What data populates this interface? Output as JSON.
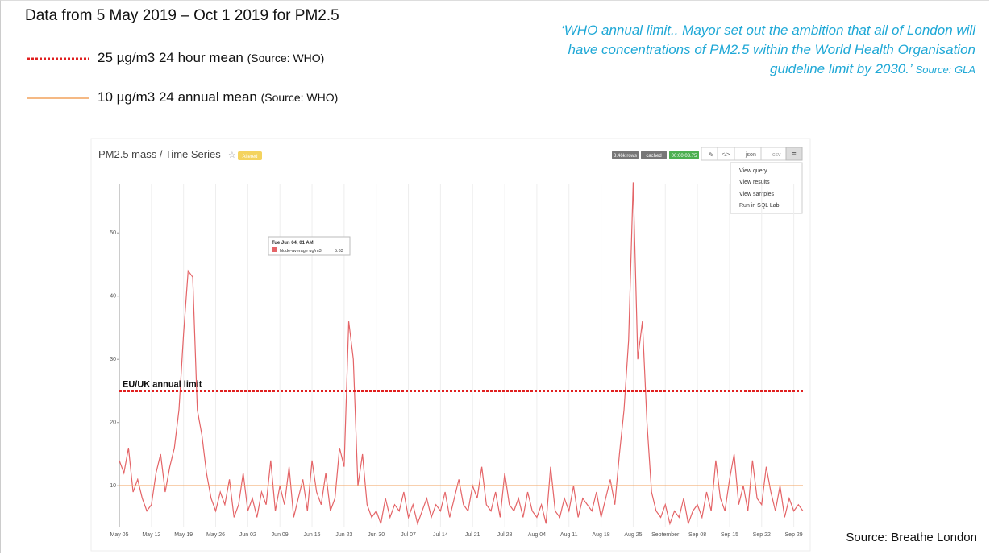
{
  "slide": {
    "title": "Data from 5 May 2019 – Oct 1 2019 for PM2.5",
    "legend": [
      {
        "label": "25 µg/m3 24 hour mean",
        "source": "(Source: WHO)"
      },
      {
        "label": "10 µg/m3 24 annual mean",
        "source": "(Source: WHO)"
      }
    ],
    "quote": {
      "lines": [
        "‘WHO annual limit.. Mayor set out the ambition that all of London will",
        "have concentrations of PM2.5 within the World Health Organisation",
        "guideline limit by 2030.’"
      ],
      "source": "Source: GLA"
    },
    "source": "Source: Breathe London"
  },
  "toolbar": {
    "title": "PM2.5 mass / Time Series",
    "badge": "Altered",
    "rows": "3.46k rows",
    "cached": "cached",
    "time": "00:00:03.75",
    "buttons": [
      "json",
      "csv"
    ],
    "menu": [
      "View query",
      "View results",
      "View samples",
      "Run in SQL Lab"
    ]
  },
  "tooltip": {
    "title": "Tue Jun 04, 01 AM",
    "series": "Node-average ug/m3",
    "value": 5.63
  },
  "chart_data": {
    "type": "line",
    "categories": [
      "May 05",
      null,
      null,
      null,
      null,
      null,
      null,
      "May 12",
      null,
      null,
      null,
      null,
      null,
      null,
      "May 19",
      null,
      null,
      null,
      null,
      null,
      null,
      "May 26",
      null,
      null,
      null,
      null,
      null,
      null,
      "Jun 02",
      null,
      null,
      null,
      null,
      null,
      null,
      "Jun 09",
      null,
      null,
      null,
      null,
      null,
      null,
      "Jun 16",
      null,
      null,
      null,
      null,
      null,
      null,
      "Jun 23",
      null,
      null,
      null,
      null,
      null,
      null,
      "Jun 30",
      null,
      null,
      null,
      null,
      null,
      null,
      "Jul 07",
      null,
      null,
      null,
      null,
      null,
      null,
      "Jul 14",
      null,
      null,
      null,
      null,
      null,
      null,
      "Jul 21",
      null,
      null,
      null,
      null,
      null,
      null,
      "Jul 28",
      null,
      null,
      null,
      null,
      null,
      null,
      "Aug 04",
      null,
      null,
      null,
      null,
      null,
      null,
      "Aug 11",
      null,
      null,
      null,
      null,
      null,
      null,
      "Aug 18",
      null,
      null,
      null,
      null,
      null,
      null,
      "Aug 25",
      null,
      null,
      null,
      null,
      null,
      null,
      "September",
      null,
      null,
      null,
      null,
      null,
      null,
      "Sep 08",
      null,
      null,
      null,
      null,
      null,
      null,
      "Sep 15",
      null,
      null,
      null,
      null,
      null,
      null,
      "Sep 22",
      null,
      null,
      null,
      null,
      null,
      null,
      "Sep 29",
      null,
      null
    ],
    "series": [
      {
        "name": "Node-average ug/m3",
        "color": "#e46467",
        "values": [
          14,
          12,
          16,
          9,
          11,
          8,
          6,
          7,
          12,
          15,
          9,
          13,
          16,
          22,
          34,
          44,
          43,
          22,
          18,
          12,
          8,
          6,
          9,
          7,
          11,
          5,
          7,
          12,
          6,
          8,
          5,
          9,
          7,
          14,
          6,
          10,
          7,
          13,
          5,
          8,
          11,
          6,
          14,
          9,
          7,
          12,
          6,
          8,
          16,
          13,
          36,
          30,
          10,
          15,
          7,
          5,
          6,
          4,
          8,
          5,
          7,
          6,
          9,
          5,
          7,
          4,
          6,
          8,
          5,
          7,
          6,
          9,
          5,
          8,
          11,
          7,
          6,
          10,
          8,
          13,
          7,
          6,
          9,
          5,
          12,
          7,
          6,
          8,
          5,
          9,
          6,
          5,
          7,
          4,
          13,
          6,
          5,
          8,
          6,
          10,
          5,
          8,
          7,
          6,
          9,
          5,
          8,
          11,
          7,
          15,
          22,
          33,
          58,
          30,
          36,
          20,
          9,
          6,
          5,
          7,
          4,
          6,
          5,
          8,
          4,
          6,
          7,
          5,
          9,
          6,
          14,
          8,
          6,
          11,
          15,
          7,
          10,
          6,
          14,
          8,
          7,
          13,
          9,
          6,
          10,
          5,
          8,
          6,
          7,
          6
        ]
      }
    ],
    "reference_lines": [
      {
        "value": 25,
        "label": "EU/UK annual limit",
        "color": "#e02020",
        "style": "dotted"
      },
      {
        "value": 10,
        "color": "#f2a25c",
        "style": "solid"
      }
    ],
    "ylim": [
      3.4,
      57.8
    ],
    "yticks": [
      10,
      20,
      30,
      40,
      50
    ],
    "grid": true
  }
}
